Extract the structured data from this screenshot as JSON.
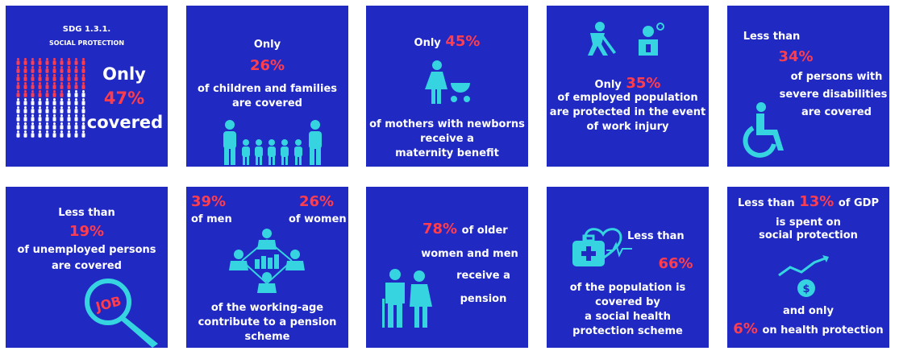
{
  "tiles": {
    "sdg": {
      "code": "SDG 1.3.1.",
      "subtitle": "SOCIAL PROTECTION",
      "prefix": "Only",
      "percent": "47%",
      "suffix": "covered",
      "covered_fraction": 0.47,
      "icon": "people-grid-icon"
    },
    "children": {
      "prefix": "Only",
      "percent": "26%",
      "line1": "of children and families",
      "line2": "are covered",
      "icon": "family-icon"
    },
    "mothers": {
      "prefix": "Only",
      "percent": "45%",
      "line1": "of mothers with newborns",
      "line2": "receive a",
      "line3": "maternity benefit",
      "icon": "mother-with-stroller-icon"
    },
    "work_injury": {
      "prefix": "Only",
      "percent": "35%",
      "line1": "of employed population",
      "line2": "are protected in the event",
      "line3": "of work injury",
      "icon": "worker-injury-icon"
    },
    "disabilities": {
      "prefix": "Less than",
      "percent": "34%",
      "line1": "of persons with",
      "line2": "severe disabilities",
      "line3": "are covered",
      "icon": "wheelchair-icon"
    },
    "unemployed": {
      "prefix": "Less than",
      "percent": "19%",
      "line1": "of unemployed persons",
      "line2": "are covered",
      "magnifier_text": "JOB",
      "icon": "job-magnifier-icon"
    },
    "pension_working": {
      "men_percent": "39%",
      "men_label": "of men",
      "women_percent": "26%",
      "women_label": "of women",
      "line1": "of the working-age",
      "line2": "contribute to a pension",
      "line3": "scheme",
      "icon": "people-network-icon"
    },
    "older": {
      "percent": "78%",
      "line1": "of older",
      "line2": "women and men",
      "line3": "receive a",
      "line4": "pension",
      "icon": "elderly-couple-icon"
    },
    "health": {
      "prefix": "Less than",
      "percent": "66%",
      "line1": "of the population is",
      "line2": "covered by",
      "line3": "a social health",
      "line4": "protection scheme",
      "icon": "medical-kit-heart-icon"
    },
    "gdp": {
      "prefix": "Less than",
      "percent": "13%",
      "suffix": "of GDP",
      "line1": "is spent on",
      "line2": "social protection",
      "line3": "and only",
      "health_percent": "6%",
      "health_label": "on health protection",
      "icon": "money-growth-icon"
    }
  },
  "colors": {
    "tile_bg": "#2029c1",
    "accent": "#ff3d4d",
    "icon": "#35d4e0",
    "text": "#ffffff",
    "grid_covered": "#ff3d4d",
    "grid_uncovered": "#ffffff"
  }
}
